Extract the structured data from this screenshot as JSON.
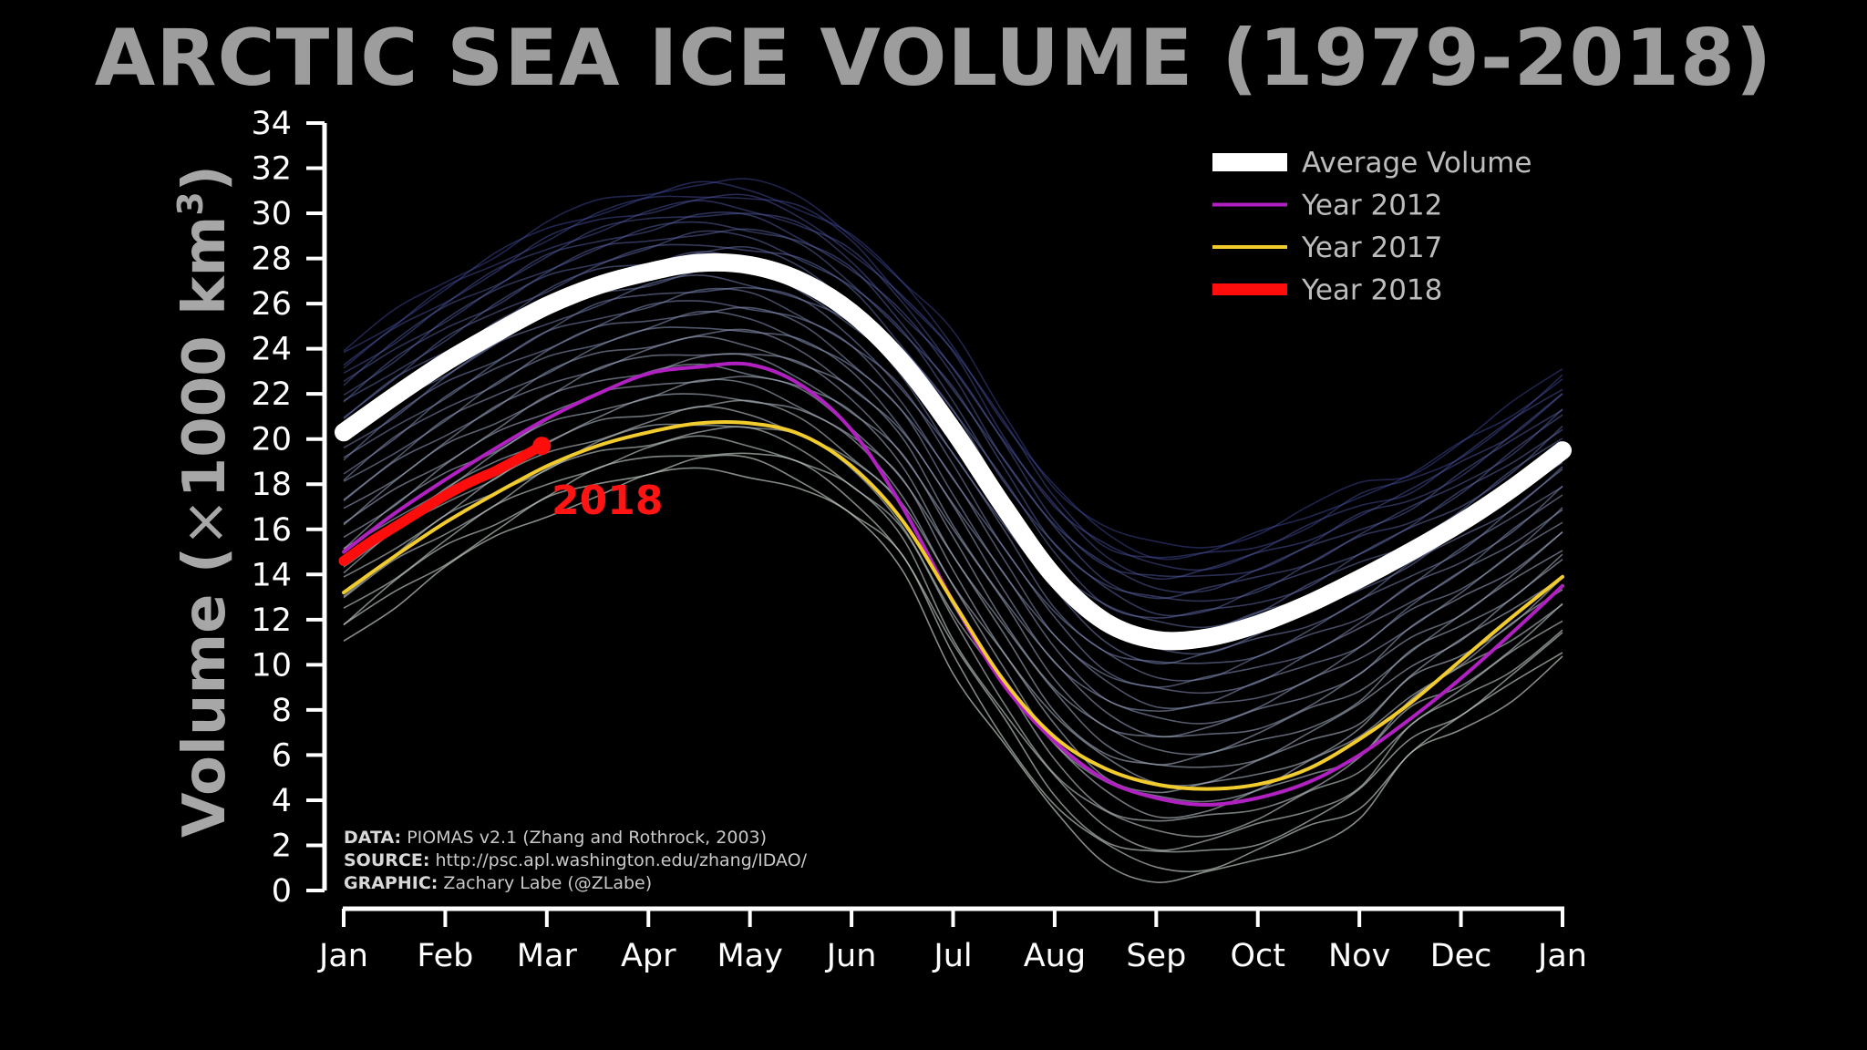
{
  "chart_data": {
    "type": "line",
    "title": "ARCTIC SEA ICE VOLUME (1979-2018)",
    "ylabel": "Volume (×1000 km³)",
    "ylabel_main": "Volume (",
    "ylabel_times": "×",
    "ylabel_unit": "1000 km",
    "ylabel_sup": "3",
    "ylabel_close": ")",
    "xlabel": "",
    "ylim": [
      0,
      34
    ],
    "yticks": [
      0,
      2,
      4,
      6,
      8,
      10,
      12,
      14,
      16,
      18,
      20,
      22,
      24,
      26,
      28,
      30,
      32,
      34
    ],
    "x_months": [
      "Jan",
      "Feb",
      "Mar",
      "Apr",
      "May",
      "Jun",
      "Jul",
      "Aug",
      "Sep",
      "Oct",
      "Nov",
      "Dec",
      "Jan"
    ],
    "xlim": [
      0,
      12
    ],
    "grid": false,
    "legend_position": "top-right",
    "legend": [
      {
        "label": "Average Volume",
        "color": "#ffffff",
        "style": "thick"
      },
      {
        "label": "Year 2012",
        "color": "#b121c2",
        "style": "thin"
      },
      {
        "label": "Year 2017",
        "color": "#f2cb2e",
        "style": "thin"
      },
      {
        "label": "Year 2018",
        "color": "#ff0d0d",
        "style": "thick"
      }
    ],
    "series": [
      {
        "name": "Average Volume",
        "color": "#ffffff",
        "x": [
          0,
          0.5,
          1,
          1.5,
          2,
          2.5,
          3,
          3.5,
          4,
          4.5,
          5,
          5.5,
          6,
          6.5,
          7,
          7.5,
          8,
          8.5,
          9,
          9.5,
          10,
          10.5,
          11,
          11.5,
          12
        ],
        "values": [
          20.3,
          21.9,
          23.4,
          24.7,
          25.9,
          26.8,
          27.4,
          27.8,
          27.7,
          27.0,
          25.6,
          23.4,
          20.4,
          17.0,
          13.9,
          11.9,
          11.1,
          11.2,
          11.8,
          12.7,
          13.8,
          15.0,
          16.3,
          17.8,
          19.5
        ]
      },
      {
        "name": "Year 2012",
        "color": "#b121c2",
        "x": [
          0,
          0.5,
          1,
          1.5,
          2,
          2.5,
          3,
          3.5,
          4,
          4.5,
          5,
          5.5,
          6,
          6.5,
          7,
          7.5,
          8,
          8.5,
          9,
          9.5,
          10,
          10.5,
          11,
          11.5,
          12
        ],
        "values": [
          15.0,
          16.7,
          18.2,
          19.6,
          20.9,
          22.0,
          22.9,
          23.2,
          23.3,
          22.4,
          20.4,
          17.0,
          12.8,
          9.1,
          6.6,
          4.9,
          4.1,
          3.8,
          4.1,
          4.8,
          6.0,
          7.6,
          9.4,
          11.4,
          13.5
        ]
      },
      {
        "name": "Year 2017",
        "color": "#f2cb2e",
        "x": [
          0,
          0.5,
          1,
          1.5,
          2,
          2.5,
          3,
          3.5,
          4,
          4.5,
          5,
          5.5,
          6,
          6.5,
          7,
          7.5,
          8,
          8.5,
          9,
          9.5,
          10,
          10.5,
          11,
          11.5,
          12
        ],
        "values": [
          13.2,
          14.8,
          16.3,
          17.6,
          18.8,
          19.7,
          20.3,
          20.7,
          20.7,
          20.2,
          18.8,
          16.4,
          12.8,
          9.3,
          6.8,
          5.4,
          4.7,
          4.5,
          4.7,
          5.4,
          6.7,
          8.3,
          10.2,
          12.1,
          13.9
        ]
      },
      {
        "name": "Year 2018",
        "color": "#ff0d0d",
        "x": [
          0,
          0.25,
          0.5,
          0.75,
          1,
          1.25,
          1.5,
          1.75,
          1.95
        ],
        "values": [
          14.6,
          15.4,
          16.1,
          16.8,
          17.5,
          18.1,
          18.6,
          19.2,
          19.7
        ]
      }
    ],
    "annotations": [
      "2018"
    ]
  },
  "credits": {
    "data_key": "DATA:",
    "data_value": "PIOMAS v2.1 (Zhang and Rothrock, 2003)",
    "source_key": "SOURCE:",
    "source_value": "http://psc.apl.washington.edu/zhang/IDAO/",
    "graphic_key": "GRAPHIC:",
    "graphic_value": "Zachary Labe (@ZLabe)"
  }
}
